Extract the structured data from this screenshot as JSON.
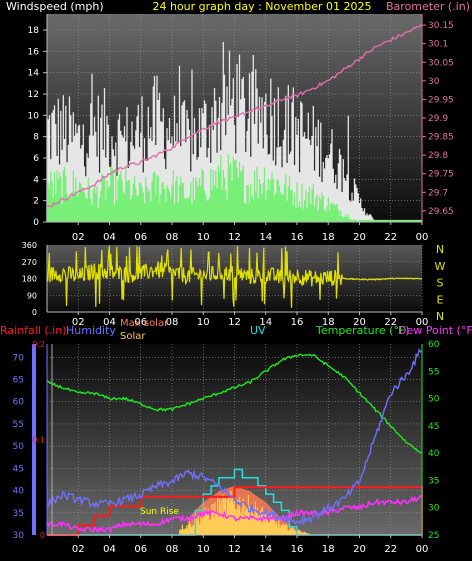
{
  "header": {
    "left": "Windspeed (mph)",
    "center": "24 hour graph day : November 01 2025",
    "right": "Barometer (.in)"
  },
  "colors": {
    "wind_gust": "#e6e6e6",
    "wind_avg": "#78f078",
    "barometer": "#e070a8",
    "direction": "#e0e000",
    "rainfall": "#ff1a1a",
    "humidity": "#7070ff",
    "maxsolar": "#ff7a50",
    "solar": "#ffcc55",
    "uv": "#20e0e0",
    "temperature": "#20e820",
    "dewpoint": "#ff30ff",
    "sunrise": "#ffff00"
  },
  "x_ticks": [
    "02",
    "04",
    "06",
    "08",
    "10",
    "12",
    "14",
    "16",
    "18",
    "20",
    "22",
    "00"
  ],
  "chart_data": [
    {
      "type": "line",
      "title": "24 hour graph day : November 01 2025",
      "x_hours": [
        0,
        1,
        2,
        3,
        4,
        5,
        6,
        7,
        8,
        9,
        10,
        11,
        12,
        13,
        14,
        15,
        16,
        17,
        18,
        19,
        20,
        21,
        22,
        23,
        24
      ],
      "left_axis": {
        "label": "Windspeed (mph)",
        "ticks": [
          "18",
          "16",
          "14",
          "12",
          "10",
          "8",
          "6",
          "4",
          "2",
          "0"
        ],
        "ylim": [
          0,
          19.5
        ]
      },
      "right_axis": {
        "label": "Barometer (.in)",
        "ticks": [
          "30.15",
          "30.1",
          "30.05",
          "30",
          "29.95",
          "29.9",
          "29.85",
          "29.8",
          "29.75",
          "29.7",
          "29.65"
        ],
        "ylim": [
          29.62,
          30.18
        ]
      },
      "series": [
        {
          "name": "Wind Gust",
          "axis": "left",
          "values": [
            9,
            9,
            8,
            9,
            9,
            8,
            9,
            10,
            9,
            8,
            9,
            11,
            12,
            10,
            11,
            10,
            9,
            8,
            7,
            5,
            2,
            0,
            0,
            0,
            0
          ]
        },
        {
          "name": "Wind Speed",
          "axis": "left",
          "values": [
            4,
            4,
            4,
            3,
            4,
            4,
            3,
            4,
            4,
            3,
            4,
            5,
            5,
            4,
            5,
            4,
            3,
            3,
            2,
            1,
            0,
            0,
            0,
            0,
            0
          ]
        },
        {
          "name": "Barometer",
          "axis": "right",
          "values": [
            29.66,
            29.68,
            29.7,
            29.72,
            29.75,
            29.77,
            29.78,
            29.8,
            29.82,
            29.85,
            29.87,
            29.89,
            29.9,
            29.92,
            29.93,
            29.95,
            29.96,
            29.98,
            30.0,
            30.03,
            30.06,
            30.09,
            30.11,
            30.13,
            30.15
          ]
        }
      ]
    },
    {
      "type": "line",
      "title": "Wind Direction",
      "x_hours": [
        0,
        1,
        2,
        3,
        4,
        5,
        6,
        7,
        8,
        9,
        10,
        11,
        12,
        13,
        14,
        15,
        16,
        17,
        18,
        19,
        20,
        21,
        22,
        23,
        24
      ],
      "left_axis": {
        "ticks": [
          "360",
          "270",
          "180",
          "90",
          "0"
        ],
        "ylim": [
          0,
          360
        ]
      },
      "right_axis": {
        "ticks": [
          "N",
          "W",
          "S",
          "E",
          "N"
        ]
      },
      "series": [
        {
          "name": "Wind Direction",
          "values": [
            200,
            210,
            190,
            220,
            215,
            200,
            205,
            230,
            210,
            195,
            200,
            205,
            210,
            190,
            200,
            185,
            195,
            180,
            185,
            180,
            175,
            175,
            180,
            180,
            180
          ]
        }
      ]
    },
    {
      "type": "line",
      "x_hours": [
        0,
        1,
        2,
        3,
        4,
        5,
        6,
        7,
        8,
        9,
        10,
        11,
        12,
        13,
        14,
        15,
        16,
        17,
        18,
        19,
        20,
        21,
        22,
        23,
        24
      ],
      "left_axis": {
        "label": "Humidity",
        "ticks": [
          "70",
          "65",
          "60",
          "55",
          "50",
          "45",
          "40",
          "35",
          "30"
        ],
        "ylim": [
          30,
          73
        ]
      },
      "rain_axis": {
        "label": "Rainfall (.in)",
        "ticks": [
          "0.2",
          "0.1",
          "0"
        ],
        "ylim": [
          0,
          0.2
        ]
      },
      "right_axis": {
        "label": "Temperature (°F) Dew Point (°F)",
        "ticks": [
          "60",
          "55",
          "50",
          "45",
          "40",
          "35",
          "30",
          "25"
        ],
        "ylim": [
          25,
          60
        ]
      },
      "labels": {
        "rainfall": "Rainfall (.in)",
        "humidity": "Humidity",
        "maxsolar": "Max solar",
        "solar": "Solar",
        "uv": "UV",
        "temperature": "Temperature (°F)",
        "dewpoint": "Dew Point (°F)",
        "sunrise": "Sun Rise"
      },
      "series": [
        {
          "name": "Temperature",
          "axis": "right",
          "values": [
            53,
            52,
            51,
            51,
            50,
            50,
            49,
            48,
            48,
            49,
            50,
            51,
            52,
            53,
            55,
            57,
            58,
            58,
            56,
            54,
            51,
            48,
            45,
            42,
            40
          ]
        },
        {
          "name": "Humidity",
          "axis": "left",
          "values": [
            37,
            39,
            38,
            37,
            37,
            38,
            39,
            41,
            42,
            44,
            43,
            41,
            38,
            36,
            35,
            34,
            33,
            34,
            36,
            38,
            42,
            52,
            62,
            66,
            72
          ]
        },
        {
          "name": "Dew Point",
          "axis": "right",
          "values": [
            27,
            27,
            26,
            26,
            26,
            27,
            27,
            27,
            28,
            28,
            29,
            29,
            28,
            28,
            28,
            28,
            29,
            29,
            29,
            30,
            30,
            31,
            31,
            31,
            32
          ]
        },
        {
          "name": "Rainfall",
          "axis": "rain",
          "values": [
            0,
            0,
            0.01,
            0.02,
            0.03,
            0.03,
            0.04,
            0.04,
            0.04,
            0.04,
            0.04,
            0.04,
            0.05,
            0.05,
            0.05,
            0.05,
            0.05,
            0.05,
            0.05,
            0.05,
            0.05,
            0.05,
            0.05,
            0.05,
            0.05
          ]
        },
        {
          "name": "Max solar",
          "axis": "right",
          "values": [
            25,
            25,
            25,
            25,
            25,
            25,
            25,
            25,
            26,
            28,
            31,
            33,
            34,
            33,
            31,
            28,
            26,
            25,
            25,
            25,
            25,
            25,
            25,
            25,
            25
          ]
        },
        {
          "name": "Solar",
          "axis": "right",
          "values": [
            25,
            25,
            25,
            25,
            25,
            25,
            25,
            25,
            26,
            27,
            29,
            31,
            32,
            31,
            29,
            27,
            26,
            25,
            25,
            25,
            25,
            25,
            25,
            25,
            25
          ]
        },
        {
          "name": "UV",
          "axis": "right",
          "values": [
            25,
            25,
            25,
            25,
            25,
            25,
            25,
            25,
            25,
            25,
            33,
            35,
            37,
            35,
            33,
            29,
            25,
            25,
            25,
            25,
            25,
            25,
            25,
            25,
            25
          ]
        }
      ]
    }
  ]
}
